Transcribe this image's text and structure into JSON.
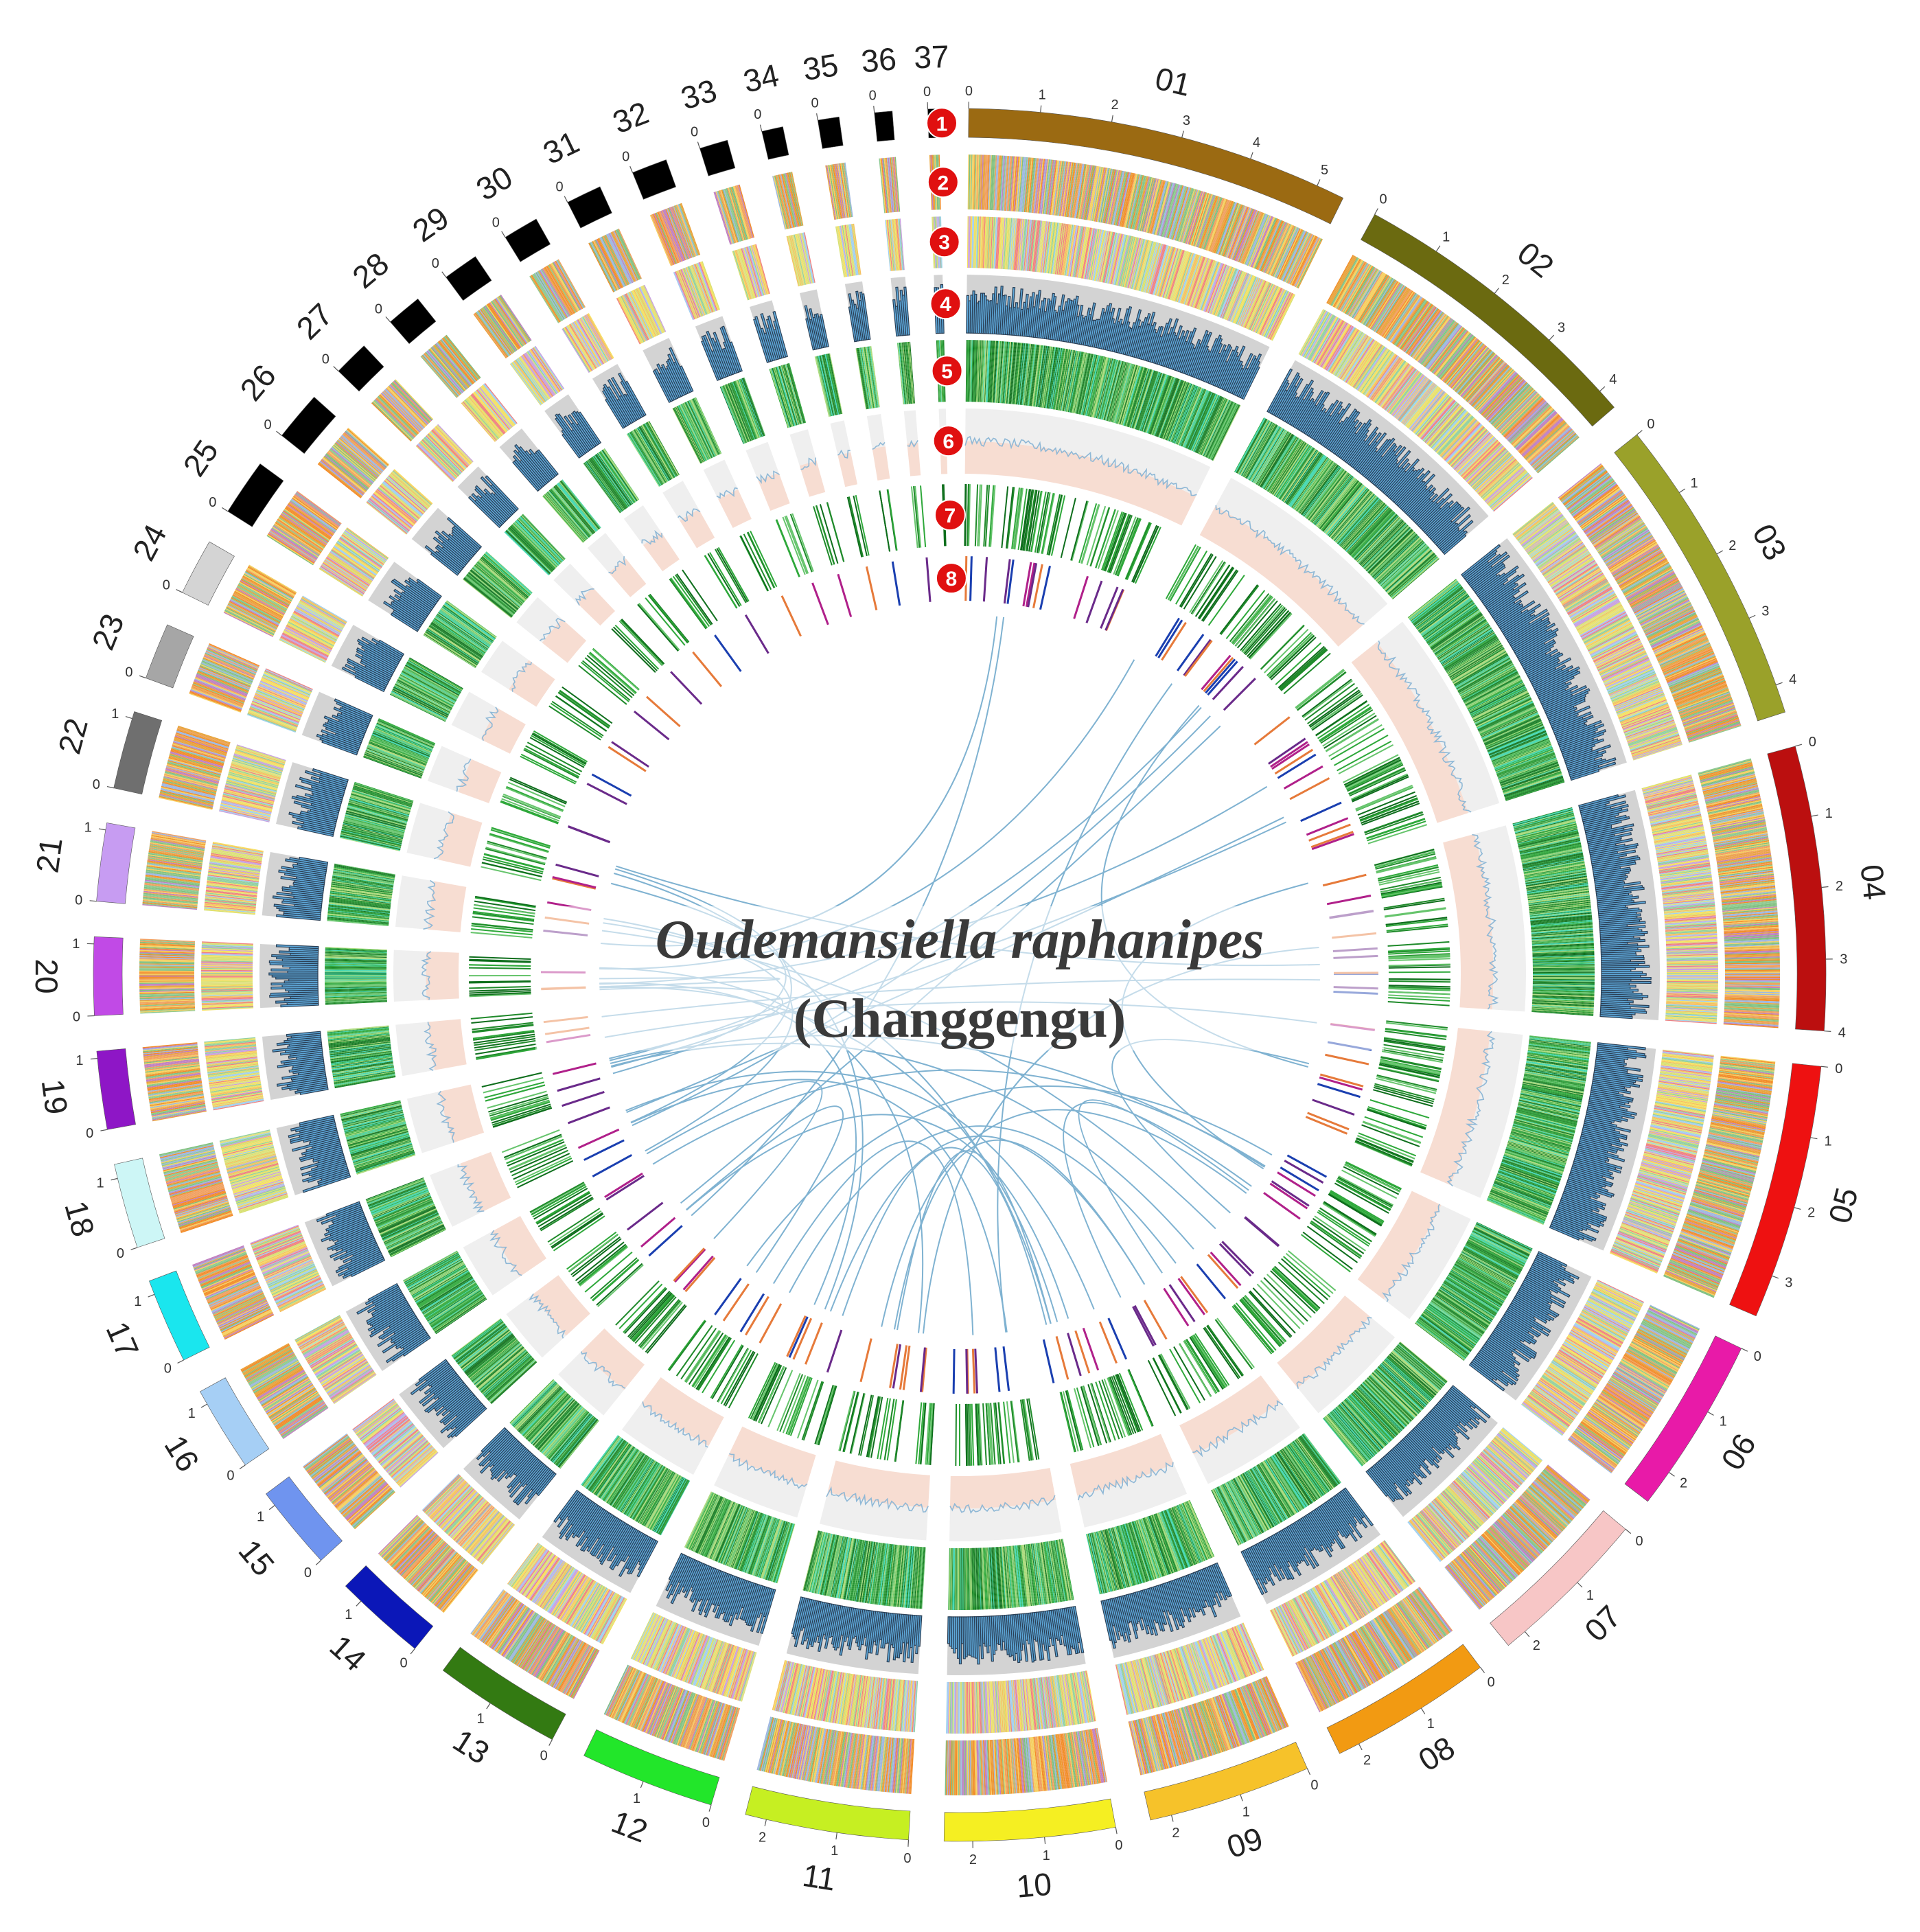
{
  "title": {
    "species": "Oudemansiella raphanipes",
    "common_name": "(Changgengu)"
  },
  "track_badges": [
    "1",
    "2",
    "3",
    "4",
    "5",
    "6",
    "7",
    "8"
  ],
  "colors": {
    "badge": "#e01010",
    "gc_fill": "#5ea7d8",
    "gc_bg": "#d3d3d3",
    "line_bg": "#f7ddd2",
    "line_bg2": "#efefef",
    "link": "#7fb2d1",
    "gene_greens": [
      "#1f8a2a",
      "#2ea83a",
      "#66c46c",
      "#0e6e1c",
      "#3dd6b0",
      "#a8d977"
    ],
    "stripes_a": [
      "#f28c28",
      "#e8a33c",
      "#7fbf7f",
      "#9db7e0",
      "#c080c0",
      "#f5d060",
      "#f0a060",
      "#8fc98f"
    ],
    "stripes_b": [
      "#f5e060",
      "#d8e070",
      "#a0d0f0",
      "#f08080",
      "#c8a0e0",
      "#f5c060",
      "#90d0a0",
      "#e0e080"
    ]
  },
  "contigs": [
    {
      "id": "01",
      "length": 5.4,
      "color": "#9b6a12",
      "ticks": [
        "0",
        "1",
        "2",
        "3",
        "4",
        "5"
      ]
    },
    {
      "id": "02",
      "length": 4.3,
      "color": "#6b6a10",
      "ticks": [
        "0",
        "1",
        "2",
        "3",
        "4"
      ]
    },
    {
      "id": "03",
      "length": 4.4,
      "color": "#9aa12a",
      "ticks": [
        "0",
        "1",
        "2",
        "3",
        "4"
      ]
    },
    {
      "id": "04",
      "length": 4.0,
      "color": "#bb0f0f",
      "ticks": [
        "0",
        "1",
        "2",
        "3",
        "4"
      ]
    },
    {
      "id": "05",
      "length": 3.6,
      "color": "#ee1111",
      "ticks": [
        "0",
        "1",
        "2",
        "3"
      ]
    },
    {
      "id": "06",
      "length": 2.5,
      "color": "#e81aa8",
      "ticks": [
        "0",
        "1",
        "2"
      ]
    },
    {
      "id": "07",
      "length": 2.3,
      "color": "#f7c6c6",
      "ticks": [
        "0",
        "1",
        "2"
      ]
    },
    {
      "id": "08",
      "length": 2.3,
      "color": "#f29a12",
      "ticks": [
        "0",
        "1",
        "2"
      ]
    },
    {
      "id": "09",
      "length": 2.3,
      "color": "#f6c22a",
      "ticks": [
        "0",
        "1",
        "2"
      ]
    },
    {
      "id": "10",
      "length": 2.4,
      "color": "#f5ef22",
      "ticks": [
        "0",
        "1",
        "2"
      ]
    },
    {
      "id": "11",
      "length": 2.3,
      "color": "#c6ef22",
      "ticks": [
        "0",
        "1",
        "2"
      ]
    },
    {
      "id": "12",
      "length": 1.9,
      "color": "#22e62a",
      "ticks": [
        "0",
        "1"
      ]
    },
    {
      "id": "13",
      "length": 1.8,
      "color": "#337a12",
      "ticks": [
        "0",
        "1"
      ]
    },
    {
      "id": "14",
      "length": 1.3,
      "color": "#0b17b8",
      "ticks": [
        "0",
        "1"
      ]
    },
    {
      "id": "15",
      "length": 1.2,
      "color": "#6f94ef",
      "ticks": [
        "0",
        "1"
      ]
    },
    {
      "id": "16",
      "length": 1.2,
      "color": "#a6cff5",
      "ticks": [
        "0",
        "1"
      ]
    },
    {
      "id": "17",
      "length": 1.2,
      "color": "#1ae6ee",
      "ticks": [
        "0",
        "1"
      ]
    },
    {
      "id": "18",
      "length": 1.2,
      "color": "#cdf6f6",
      "ticks": [
        "0",
        "1"
      ]
    },
    {
      "id": "19",
      "length": 1.1,
      "color": "#8e16c6",
      "ticks": [
        "0",
        "1"
      ]
    },
    {
      "id": "20",
      "length": 1.1,
      "color": "#c14ae6",
      "ticks": [
        "0",
        "1"
      ]
    },
    {
      "id": "21",
      "length": 1.1,
      "color": "#c79cf2",
      "ticks": [
        "0",
        "1"
      ]
    },
    {
      "id": "22",
      "length": 1.1,
      "color": "#6f6f6f",
      "ticks": [
        "0",
        "1"
      ]
    },
    {
      "id": "23",
      "length": 0.8,
      "color": "#a6a6a6",
      "ticks": [
        "0"
      ]
    },
    {
      "id": "24",
      "length": 0.8,
      "color": "#d4d4d4",
      "ticks": [
        "0"
      ]
    },
    {
      "id": "25",
      "length": 0.8,
      "color": "#000000",
      "ticks": [
        "0"
      ]
    },
    {
      "id": "26",
      "length": 0.7,
      "color": "#000000",
      "ticks": [
        "0"
      ]
    },
    {
      "id": "27",
      "length": 0.5,
      "color": "#000000",
      "ticks": [
        "0"
      ]
    },
    {
      "id": "28",
      "length": 0.5,
      "color": "#000000",
      "ticks": [
        "0"
      ]
    },
    {
      "id": "29",
      "length": 0.5,
      "color": "#000000",
      "ticks": [
        "0"
      ]
    },
    {
      "id": "30",
      "length": 0.5,
      "color": "#000000",
      "ticks": [
        "0"
      ]
    },
    {
      "id": "31",
      "length": 0.5,
      "color": "#000000",
      "ticks": [
        "0"
      ]
    },
    {
      "id": "32",
      "length": 0.5,
      "color": "#000000",
      "ticks": [
        "0"
      ]
    },
    {
      "id": "33",
      "length": 0.4,
      "color": "#000000",
      "ticks": [
        "0"
      ]
    },
    {
      "id": "34",
      "length": 0.3,
      "color": "#000000",
      "ticks": [
        "0"
      ]
    },
    {
      "id": "35",
      "length": 0.3,
      "color": "#000000",
      "ticks": [
        "0"
      ]
    },
    {
      "id": "36",
      "length": 0.25,
      "color": "#000000",
      "ticks": [
        "0"
      ]
    },
    {
      "id": "37",
      "length": 0.15,
      "color": "#000000",
      "ticks": [
        "0"
      ]
    }
  ]
}
